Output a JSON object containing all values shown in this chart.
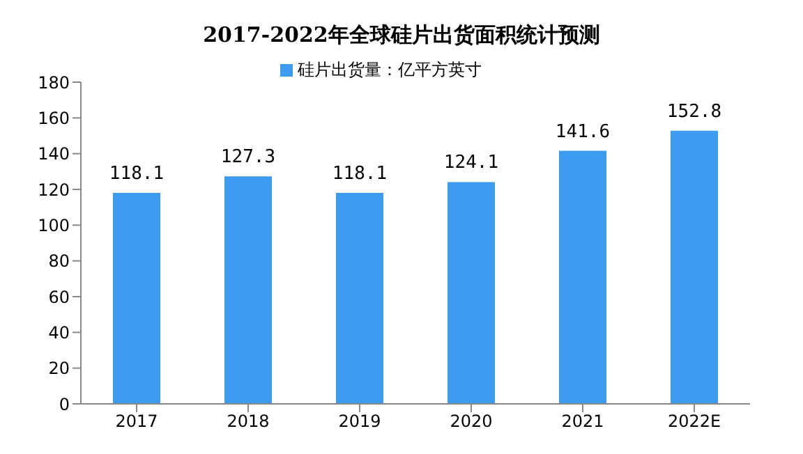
{
  "chart_data": {
    "type": "bar",
    "title": "2017-2022年全球硅片出货面积统计预测",
    "categories": [
      "2017",
      "2018",
      "2019",
      "2020",
      "2021",
      "2022E"
    ],
    "series": [
      {
        "name": "硅片出货量：亿平方英寸",
        "color": "#3d9cf0",
        "values": [
          118.1,
          127.3,
          118.1,
          124.1,
          141.6,
          152.8
        ]
      }
    ],
    "ylim": [
      0,
      180
    ],
    "yticks": [
      0,
      20,
      40,
      60,
      80,
      100,
      120,
      140,
      160,
      180
    ],
    "data_labels": true,
    "grid": false,
    "legend": "top"
  }
}
